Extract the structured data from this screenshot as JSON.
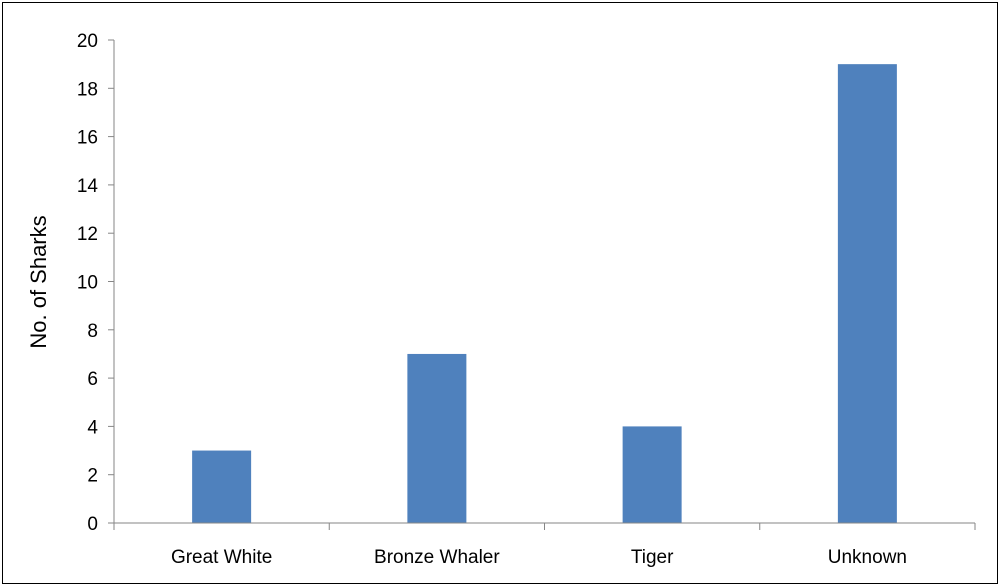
{
  "chart_data": {
    "type": "bar",
    "categories": [
      "Great White",
      "Bronze Whaler",
      "Tiger",
      "Unknown"
    ],
    "values": [
      3,
      7,
      4,
      19
    ],
    "title": "",
    "xlabel": "",
    "ylabel": "No. of Sharks",
    "ylim": [
      0,
      20
    ],
    "yticks": [
      0,
      2,
      4,
      6,
      8,
      10,
      12,
      14,
      16,
      18,
      20
    ],
    "grid": false,
    "legend": "none",
    "bar_color": "#4F81BD"
  }
}
